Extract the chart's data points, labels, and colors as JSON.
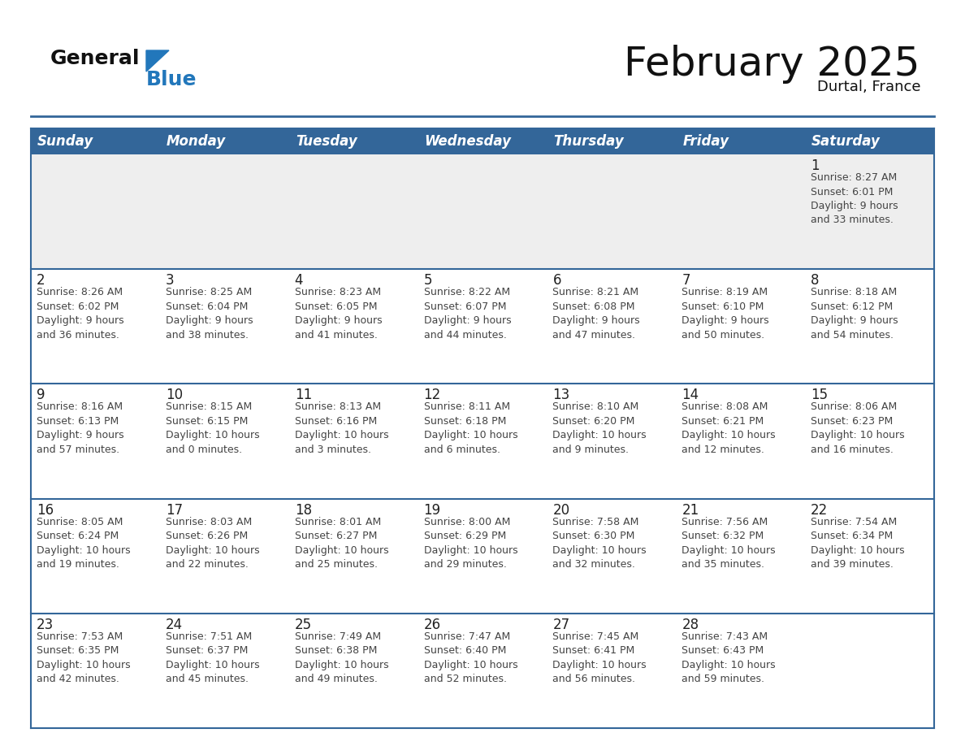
{
  "title": "February 2025",
  "subtitle": "Durtal, France",
  "header_bg": "#336699",
  "header_text_color": "#FFFFFF",
  "days_of_week": [
    "Sunday",
    "Monday",
    "Tuesday",
    "Wednesday",
    "Thursday",
    "Friday",
    "Saturday"
  ],
  "cell_bg_white": "#FFFFFF",
  "cell_bg_gray": "#EEEEEE",
  "separator_color": "#336699",
  "text_color": "#444444",
  "day_num_color": "#222222",
  "calendar_data": [
    [
      null,
      null,
      null,
      null,
      null,
      null,
      {
        "day": "1",
        "sunrise": "8:27 AM",
        "sunset": "6:01 PM",
        "daylight": "9 hours\nand 33 minutes."
      }
    ],
    [
      {
        "day": "2",
        "sunrise": "8:26 AM",
        "sunset": "6:02 PM",
        "daylight": "9 hours\nand 36 minutes."
      },
      {
        "day": "3",
        "sunrise": "8:25 AM",
        "sunset": "6:04 PM",
        "daylight": "9 hours\nand 38 minutes."
      },
      {
        "day": "4",
        "sunrise": "8:23 AM",
        "sunset": "6:05 PM",
        "daylight": "9 hours\nand 41 minutes."
      },
      {
        "day": "5",
        "sunrise": "8:22 AM",
        "sunset": "6:07 PM",
        "daylight": "9 hours\nand 44 minutes."
      },
      {
        "day": "6",
        "sunrise": "8:21 AM",
        "sunset": "6:08 PM",
        "daylight": "9 hours\nand 47 minutes."
      },
      {
        "day": "7",
        "sunrise": "8:19 AM",
        "sunset": "6:10 PM",
        "daylight": "9 hours\nand 50 minutes."
      },
      {
        "day": "8",
        "sunrise": "8:18 AM",
        "sunset": "6:12 PM",
        "daylight": "9 hours\nand 54 minutes."
      }
    ],
    [
      {
        "day": "9",
        "sunrise": "8:16 AM",
        "sunset": "6:13 PM",
        "daylight": "9 hours\nand 57 minutes."
      },
      {
        "day": "10",
        "sunrise": "8:15 AM",
        "sunset": "6:15 PM",
        "daylight": "10 hours\nand 0 minutes."
      },
      {
        "day": "11",
        "sunrise": "8:13 AM",
        "sunset": "6:16 PM",
        "daylight": "10 hours\nand 3 minutes."
      },
      {
        "day": "12",
        "sunrise": "8:11 AM",
        "sunset": "6:18 PM",
        "daylight": "10 hours\nand 6 minutes."
      },
      {
        "day": "13",
        "sunrise": "8:10 AM",
        "sunset": "6:20 PM",
        "daylight": "10 hours\nand 9 minutes."
      },
      {
        "day": "14",
        "sunrise": "8:08 AM",
        "sunset": "6:21 PM",
        "daylight": "10 hours\nand 12 minutes."
      },
      {
        "day": "15",
        "sunrise": "8:06 AM",
        "sunset": "6:23 PM",
        "daylight": "10 hours\nand 16 minutes."
      }
    ],
    [
      {
        "day": "16",
        "sunrise": "8:05 AM",
        "sunset": "6:24 PM",
        "daylight": "10 hours\nand 19 minutes."
      },
      {
        "day": "17",
        "sunrise": "8:03 AM",
        "sunset": "6:26 PM",
        "daylight": "10 hours\nand 22 minutes."
      },
      {
        "day": "18",
        "sunrise": "8:01 AM",
        "sunset": "6:27 PM",
        "daylight": "10 hours\nand 25 minutes."
      },
      {
        "day": "19",
        "sunrise": "8:00 AM",
        "sunset": "6:29 PM",
        "daylight": "10 hours\nand 29 minutes."
      },
      {
        "day": "20",
        "sunrise": "7:58 AM",
        "sunset": "6:30 PM",
        "daylight": "10 hours\nand 32 minutes."
      },
      {
        "day": "21",
        "sunrise": "7:56 AM",
        "sunset": "6:32 PM",
        "daylight": "10 hours\nand 35 minutes."
      },
      {
        "day": "22",
        "sunrise": "7:54 AM",
        "sunset": "6:34 PM",
        "daylight": "10 hours\nand 39 minutes."
      }
    ],
    [
      {
        "day": "23",
        "sunrise": "7:53 AM",
        "sunset": "6:35 PM",
        "daylight": "10 hours\nand 42 minutes."
      },
      {
        "day": "24",
        "sunrise": "7:51 AM",
        "sunset": "6:37 PM",
        "daylight": "10 hours\nand 45 minutes."
      },
      {
        "day": "25",
        "sunrise": "7:49 AM",
        "sunset": "6:38 PM",
        "daylight": "10 hours\nand 49 minutes."
      },
      {
        "day": "26",
        "sunrise": "7:47 AM",
        "sunset": "6:40 PM",
        "daylight": "10 hours\nand 52 minutes."
      },
      {
        "day": "27",
        "sunrise": "7:45 AM",
        "sunset": "6:41 PM",
        "daylight": "10 hours\nand 56 minutes."
      },
      {
        "day": "28",
        "sunrise": "7:43 AM",
        "sunset": "6:43 PM",
        "daylight": "10 hours\nand 59 minutes."
      },
      null
    ]
  ],
  "logo_general_color": "#111111",
  "logo_blue_color": "#2277BB",
  "title_fontsize": 36,
  "subtitle_fontsize": 13,
  "header_fontsize": 12,
  "day_num_fontsize": 12,
  "cell_fontsize": 9
}
